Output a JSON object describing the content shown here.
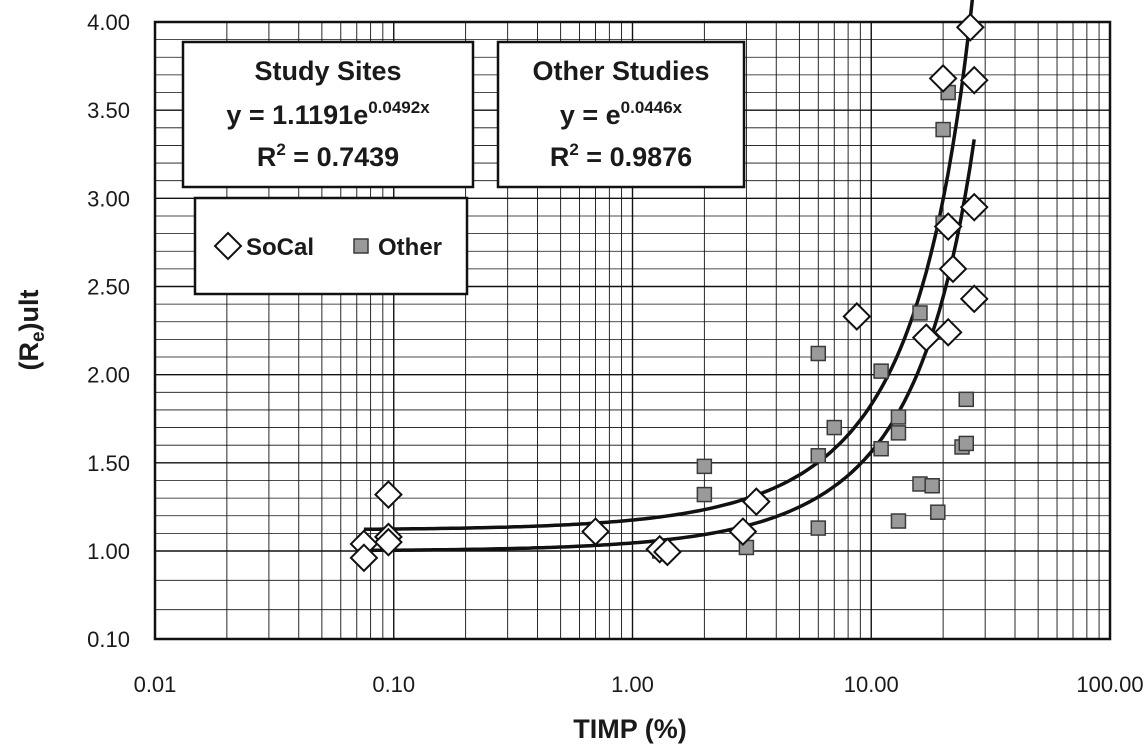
{
  "chart_data": {
    "type": "scatter",
    "x_scale": "log",
    "xlim": [
      0.01,
      100
    ],
    "ylim": [
      0.1,
      4.0
    ],
    "xlabel": "TIMP (%)",
    "ylabel_main": "(R",
    "ylabel_sub": "e",
    "ylabel_tail": ")ult",
    "x_ticks": [
      0.01,
      0.1,
      1,
      10,
      100
    ],
    "x_tick_labels": [
      "0.01",
      "0.10",
      "1.00",
      "10.00",
      "100.00"
    ],
    "y_ticks": [
      0.1,
      1.0,
      1.5,
      2.0,
      2.5,
      3.0,
      3.5,
      4.0
    ],
    "y_tick_labels": [
      "0.10",
      "1.00",
      "1.50",
      "2.00",
      "2.50",
      "3.00",
      "3.50",
      "4.00"
    ],
    "grid": true,
    "series": [
      {
        "name": "SoCal",
        "marker": "diamond",
        "points": [
          [
            0.075,
            1.04
          ],
          [
            0.075,
            0.93
          ],
          [
            0.095,
            1.32
          ],
          [
            0.095,
            1.08
          ],
          [
            0.095,
            1.05
          ],
          [
            0.7,
            1.11
          ],
          [
            1.3,
            1.01
          ],
          [
            1.4,
            0.99
          ],
          [
            2.9,
            1.11
          ],
          [
            3.3,
            1.28
          ],
          [
            8.7,
            2.33
          ],
          [
            17,
            2.21
          ],
          [
            21,
            2.24
          ],
          [
            21,
            2.84
          ],
          [
            22,
            2.6
          ],
          [
            27,
            2.95
          ],
          [
            27,
            2.43
          ],
          [
            20,
            3.68
          ],
          [
            27,
            3.67
          ],
          [
            26,
            3.97
          ]
        ]
      },
      {
        "name": "Other",
        "marker": "square",
        "points": [
          [
            1.3,
            1.0
          ],
          [
            2.0,
            1.48
          ],
          [
            2.0,
            1.32
          ],
          [
            3.0,
            1.02
          ],
          [
            6.0,
            2.12
          ],
          [
            6.0,
            1.54
          ],
          [
            6.0,
            1.13
          ],
          [
            7.0,
            1.7
          ],
          [
            11,
            2.02
          ],
          [
            11,
            1.58
          ],
          [
            13,
            1.76
          ],
          [
            13,
            1.67
          ],
          [
            13,
            1.17
          ],
          [
            16,
            2.35
          ],
          [
            16,
            1.38
          ],
          [
            18,
            1.37
          ],
          [
            19,
            1.22
          ],
          [
            20,
            3.39
          ],
          [
            20,
            2.86
          ],
          [
            21,
            3.6
          ],
          [
            24,
            1.59
          ],
          [
            25,
            1.86
          ],
          [
            25,
            1.61
          ]
        ]
      }
    ],
    "trendlines": [
      {
        "name": "Study Sites",
        "a": 1.1191,
        "b": 0.0492,
        "x_range": [
          0.075,
          27
        ]
      },
      {
        "name": "Other Studies",
        "a": 1.0,
        "b": 0.0446,
        "x_range": [
          0.075,
          27
        ]
      }
    ],
    "annotations": {
      "study": {
        "title": "Study Sites",
        "eq_prefix": "y = 1.1191e",
        "eq_exp": "0.0492x",
        "r2_prefix": "R",
        "r2_exp": "2",
        "r2_value": " = 0.7439"
      },
      "other": {
        "title": "Other Studies",
        "eq_prefix": "y = e",
        "eq_exp": "0.0446x",
        "r2_prefix": "R",
        "r2_exp": "2",
        "r2_value": " = 0.9876"
      }
    },
    "legend": {
      "position": "top-left",
      "items": [
        "SoCal",
        "Other"
      ]
    },
    "colors": {
      "square_fill": "#9a9a9a",
      "square_stroke": "#3a3a3a",
      "diamond_fill": "#ffffff",
      "line": "#111111",
      "grid": "#111111"
    }
  }
}
